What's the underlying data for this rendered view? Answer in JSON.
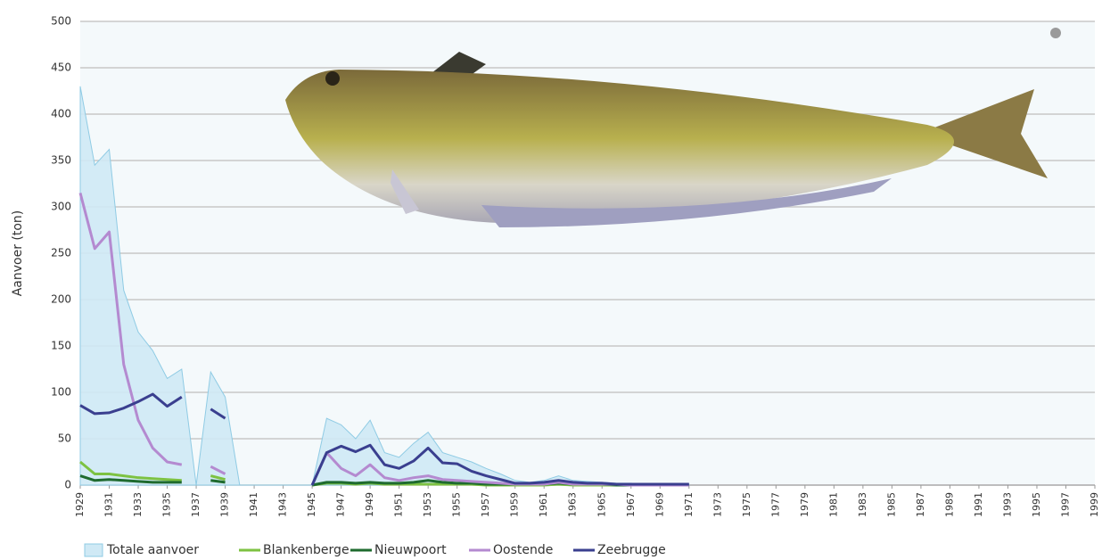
{
  "chart_data": {
    "type": "line",
    "y_label": "Aanvoer (ton)",
    "x": [
      1929,
      1930,
      1931,
      1932,
      1933,
      1934,
      1935,
      1936,
      1937,
      1938,
      1939,
      1940,
      1941,
      1942,
      1943,
      1944,
      1945,
      1946,
      1947,
      1948,
      1949,
      1950,
      1951,
      1952,
      1953,
      1954,
      1955,
      1956,
      1957,
      1958,
      1959,
      1960,
      1961,
      1962,
      1963,
      1964,
      1965,
      1966,
      1967,
      1968,
      1969,
      1970,
      1971
    ],
    "xlim": [
      1929,
      1999
    ],
    "xticks": [
      1929,
      1931,
      1933,
      1935,
      1937,
      1939,
      1941,
      1943,
      1945,
      1947,
      1949,
      1951,
      1953,
      1955,
      1957,
      1959,
      1961,
      1963,
      1965,
      1967,
      1969,
      1971,
      1973,
      1975,
      1977,
      1979,
      1981,
      1983,
      1985,
      1987,
      1989,
      1991,
      1993,
      1995,
      1997,
      1999
    ],
    "ylim": [
      0,
      500
    ],
    "yticks": [
      0,
      50,
      100,
      150,
      200,
      250,
      300,
      350,
      400,
      450,
      500
    ],
    "grid": true,
    "legend": "bottom",
    "series": [
      {
        "name": "Totale aanvoer",
        "type": "area",
        "color": "#cfe9f5",
        "values": [
          430,
          345,
          362,
          210,
          165,
          145,
          115,
          125,
          0,
          122,
          95,
          0,
          0,
          0,
          0,
          0,
          0,
          72,
          65,
          50,
          70,
          35,
          30,
          45,
          57,
          35,
          30,
          25,
          18,
          12,
          5,
          3,
          5,
          10,
          5,
          4,
          3,
          2,
          2,
          1,
          1,
          1,
          1
        ]
      },
      {
        "name": "Blankenberge",
        "color": "#7dc242",
        "values": [
          25,
          12,
          12,
          10,
          8,
          7,
          6,
          5,
          null,
          10,
          6,
          null,
          null,
          null,
          null,
          null,
          0,
          2,
          2,
          1,
          2,
          1,
          1,
          1,
          1,
          1,
          1,
          1,
          0,
          0,
          0,
          0,
          0,
          1,
          0,
          0,
          0,
          0,
          0,
          0,
          0,
          0,
          0
        ]
      },
      {
        "name": "Nieuwpoort",
        "color": "#1f6b2f",
        "values": [
          10,
          5,
          6,
          5,
          4,
          3,
          3,
          3,
          null,
          5,
          3,
          null,
          null,
          null,
          null,
          null,
          0,
          3,
          3,
          2,
          3,
          2,
          2,
          3,
          5,
          3,
          2,
          2,
          1,
          1,
          1,
          1,
          1,
          2,
          1,
          1,
          1,
          0,
          0,
          0,
          0,
          0,
          0
        ]
      },
      {
        "name": "Oostende",
        "color": "#b48ad0",
        "values": [
          315,
          255,
          273,
          130,
          70,
          40,
          25,
          22,
          null,
          20,
          12,
          null,
          null,
          null,
          null,
          null,
          0,
          35,
          18,
          10,
          22,
          8,
          5,
          8,
          10,
          6,
          5,
          4,
          3,
          2,
          1,
          1,
          1,
          3,
          1,
          1,
          1,
          1,
          0,
          0,
          0,
          0,
          0
        ]
      },
      {
        "name": "Zeebrugge",
        "color": "#3a3f8f",
        "values": [
          86,
          77,
          78,
          83,
          90,
          98,
          85,
          95,
          null,
          82,
          72,
          null,
          null,
          null,
          null,
          null,
          0,
          35,
          42,
          36,
          43,
          22,
          18,
          26,
          40,
          24,
          23,
          15,
          10,
          6,
          2,
          2,
          3,
          5,
          3,
          2,
          2,
          1,
          1,
          1,
          1,
          1,
          1
        ]
      }
    ]
  }
}
